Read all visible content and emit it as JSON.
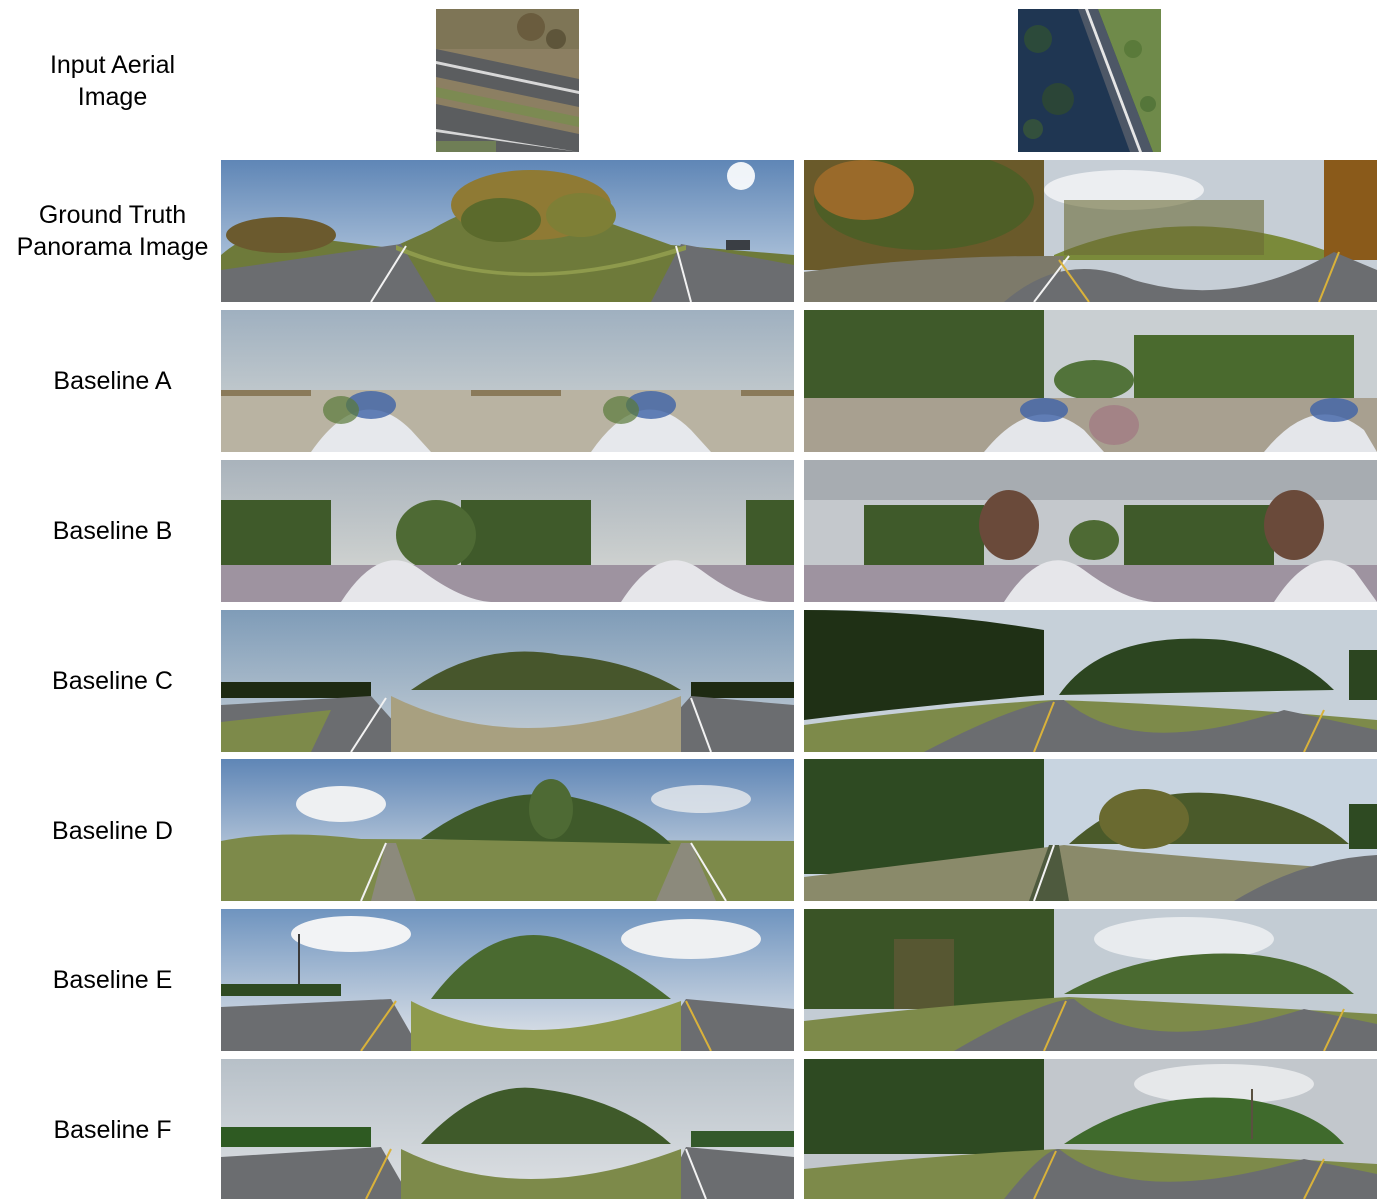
{
  "figure": {
    "rows": [
      {
        "key": "input",
        "label": "Input Aerial\nImage"
      },
      {
        "key": "gt",
        "label": "Ground Truth\nPanorama Image"
      },
      {
        "key": "a",
        "label": "Baseline A"
      },
      {
        "key": "b",
        "label": "Baseline B"
      },
      {
        "key": "c",
        "label": "Baseline C"
      },
      {
        "key": "d",
        "label": "Baseline D"
      },
      {
        "key": "e",
        "label": "Baseline E"
      },
      {
        "key": "f",
        "label": "Baseline F"
      }
    ],
    "columns": [
      {
        "key": "example-1",
        "scene": "divided highway with grassy median"
      },
      {
        "key": "example-2",
        "scene": "two-lane road through forest"
      }
    ],
    "colors": {
      "sky_clear": "#7fa3c8",
      "sky_overcast": "#c9ced4",
      "tree_green": "#3f5a2a",
      "autumn": "#9a7a3a",
      "grass": "#7d8a4a",
      "road": "#6b6d70",
      "lane_white": "#f2f2f2",
      "lane_yellow": "#d9b23a",
      "aerial_forest": "#1e3550",
      "aerial_field": "#8a8a5a"
    }
  }
}
